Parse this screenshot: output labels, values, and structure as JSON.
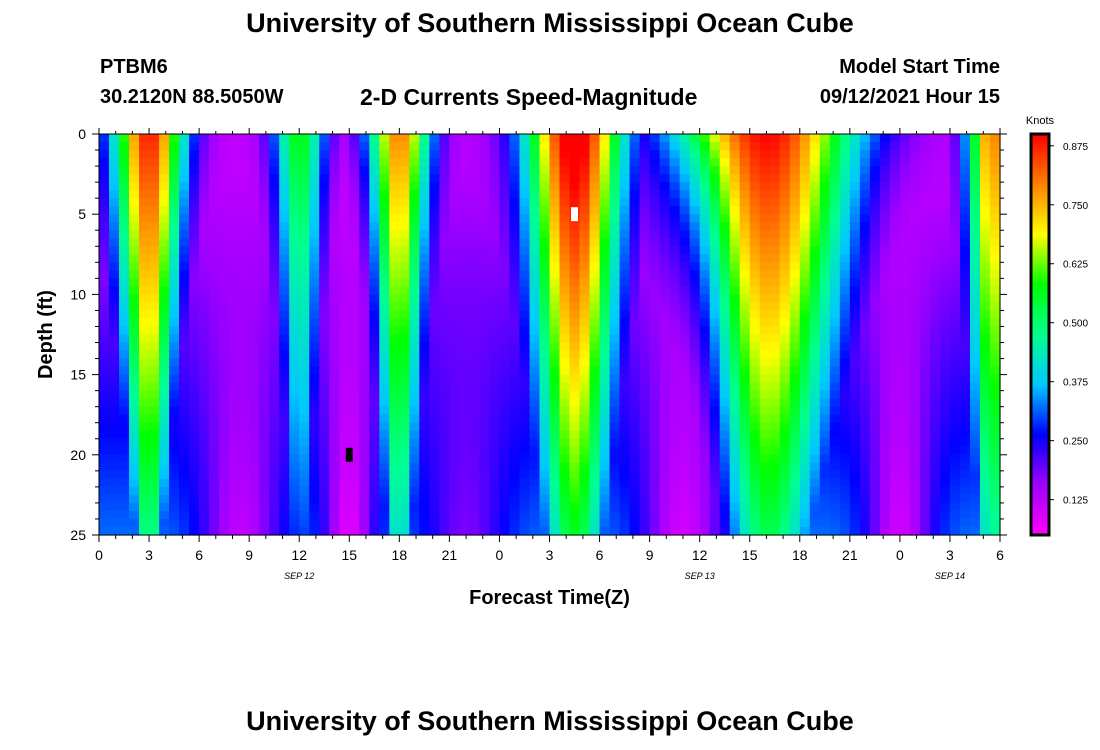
{
  "page": {
    "title": "University of Southern Mississippi Ocean Cube",
    "bottom_title": "University of Southern Mississippi Ocean Cube",
    "station_id": "PTBM6",
    "station_coords": "30.2120N  88.5050W",
    "model_start_label": "Model Start Time",
    "model_start_value": "09/12/2021 Hour 15"
  },
  "chart_data": {
    "type": "heatmap",
    "title": "2-D Currents Speed-Magnitude",
    "xlabel": "Forecast Time(Z)",
    "ylabel": "Depth (ft)",
    "x_range": [
      0,
      54
    ],
    "x_unit": "hours since 09/12 00Z",
    "x_ticks": [
      0,
      3,
      6,
      9,
      12,
      15,
      18,
      21,
      24,
      27,
      30,
      33,
      36,
      39,
      42,
      45,
      48,
      51,
      54
    ],
    "x_tick_labels": [
      "0",
      "3",
      "6",
      "9",
      "12",
      "15",
      "18",
      "21",
      "0",
      "3",
      "6",
      "9",
      "12",
      "15",
      "18",
      "21",
      "0",
      "3",
      "6"
    ],
    "day_labels": [
      {
        "x": 12,
        "text": "SEP 12"
      },
      {
        "x": 36,
        "text": "SEP 13"
      },
      {
        "x": 51,
        "text": "SEP 14"
      }
    ],
    "y_range": [
      0,
      25
    ],
    "y_inverted": true,
    "y_ticks": [
      0,
      5,
      10,
      15,
      20,
      25
    ],
    "y_tick_labels": [
      "0",
      "5",
      "10",
      "15",
      "20",
      "25"
    ],
    "colorbar": {
      "label": "Knots",
      "range": [
        0.05,
        0.9
      ],
      "tick_values": [
        0.125,
        0.25,
        0.375,
        0.5,
        0.625,
        0.75,
        0.875
      ],
      "tick_labels": [
        "0.125",
        "0.250",
        "0.375",
        "0.500",
        "0.625",
        "0.750",
        "0.875"
      ],
      "colors": [
        "#ff00ff",
        "#a000ff",
        "#0000ff",
        "#00c8ff",
        "#00ff90",
        "#00ff00",
        "#ffff00",
        "#ff8000",
        "#ff0000"
      ]
    },
    "features": [
      {
        "kind": "high",
        "time": 3,
        "speed_surface": 0.8,
        "width_surface": 2.2,
        "width_bottom": 1.0
      },
      {
        "kind": "high",
        "time": 12,
        "speed_surface": 0.5,
        "width_surface": 1.6,
        "width_bottom": 0.8
      },
      {
        "kind": "high",
        "time": 18,
        "speed_surface": 0.72,
        "width_surface": 1.9,
        "width_bottom": 1.0
      },
      {
        "kind": "high",
        "time": 28.5,
        "speed_surface": 0.87,
        "width_surface": 3.0,
        "width_bottom": 2.0
      },
      {
        "kind": "high",
        "time": 40,
        "speed_surface": 0.82,
        "width_surface": 5.5,
        "width_bottom": 3.0
      },
      {
        "kind": "high",
        "time": 53.5,
        "speed_surface": 0.72,
        "width_surface": 1.5,
        "width_bottom": 1.0
      },
      {
        "kind": "low",
        "time": 8.5,
        "speed_bottom": 0.12,
        "width": 2.5
      },
      {
        "kind": "low",
        "time": 15,
        "speed_bottom": 0.08,
        "width": 1.5
      },
      {
        "kind": "low",
        "time": 22,
        "speed_bottom": 0.18,
        "width": 2.5
      },
      {
        "kind": "low",
        "time": 35,
        "speed_bottom": 0.1,
        "width": 2.5
      },
      {
        "kind": "low",
        "time": 48,
        "speed_bottom": 0.1,
        "width": 2.0
      }
    ],
    "markers": [
      {
        "time": 28.5,
        "depth": 5,
        "color": "#ffffff"
      },
      {
        "time": 15,
        "depth": 20,
        "color": "#000000"
      }
    ]
  }
}
